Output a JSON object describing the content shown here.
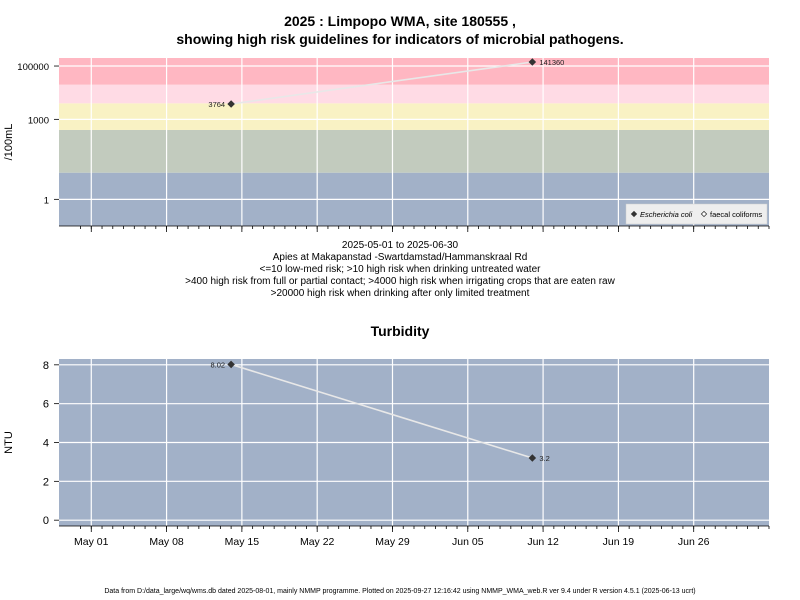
{
  "figure": {
    "title_line1": "2025 : Limpopo WMA, site 180555 ,",
    "title_line2": "showing high risk guidelines for indicators of microbial pathogens.",
    "date_range": "2025-05-01 to 2025-06-30",
    "site_name": "Apies at Makapanstad -Swartdamstad/Hammanskraal Rd",
    "guideline_1": "<=10 low-med risk; >10 high risk when drinking untreated water",
    "guideline_2": ">400 high risk from full or partial contact; >4000 high risk when irrigating crops that are eaten raw",
    "guideline_3": ">20000 high risk when drinking after only limited treatment",
    "footer": "Data from D:/data_large/wq/wms.db dated 2025-08-01, mainly NMMP programme. Plotted on 2025-09-27 12:16:42 using NMMP_WMA_web.R ver 9.4 under R version 4.5.1 (2025-06-13 ucrt)"
  },
  "chart_data": [
    {
      "type": "line",
      "title": "",
      "xlabel": "",
      "ylabel": "/100mL",
      "y_scale": "log",
      "ylim": [
        0.1,
        200000
      ],
      "x_ticks": [
        "May 01",
        "May 08",
        "May 15",
        "May 22",
        "May 29",
        "Jun 05",
        "Jun 12",
        "Jun 19",
        "Jun 26"
      ],
      "x_tick_dates": [
        "2025-05-01",
        "2025-05-08",
        "2025-05-15",
        "2025-05-22",
        "2025-05-29",
        "2025-06-05",
        "2025-06-12",
        "2025-06-19",
        "2025-06-26"
      ],
      "xlim": [
        "2025-04-28",
        "2025-07-03"
      ],
      "y_ticks": [
        1,
        1000,
        100000
      ],
      "y_tick_labels": [
        "1",
        "1000",
        "100000"
      ],
      "grid": true,
      "risk_bands": [
        {
          "from": 0.1,
          "to": 10,
          "color": "#a2b1c8"
        },
        {
          "from": 10,
          "to": 400,
          "color": "#c2cbbe"
        },
        {
          "from": 400,
          "to": 4000,
          "color": "#f9f2c4"
        },
        {
          "from": 4000,
          "to": 20000,
          "color": "#ffdbe5"
        },
        {
          "from": 20000,
          "to": 200000,
          "color": "#ffb7c2"
        }
      ],
      "series": [
        {
          "name": "Escherichia coli",
          "x": [
            "2025-05-14",
            "2025-06-11"
          ],
          "y": [
            3764,
            141360
          ],
          "labels": [
            "3764",
            "141360"
          ],
          "marker": "diamond-filled",
          "color": "#333333"
        }
      ],
      "legend": {
        "position": "bottom-right",
        "entries": [
          {
            "label": "Escherichia coli",
            "marker": "diamond-filled",
            "italic": true
          },
          {
            "label": "faecal coliforms",
            "marker": "diamond-open",
            "italic": false
          }
        ]
      }
    },
    {
      "type": "line",
      "title": "Turbidity",
      "xlabel": "",
      "ylabel": "NTU",
      "ylim": [
        -0.3,
        8.3
      ],
      "x_ticks": [
        "May 01",
        "May 08",
        "May 15",
        "May 22",
        "May 29",
        "Jun 05",
        "Jun 12",
        "Jun 19",
        "Jun 26"
      ],
      "x_tick_dates": [
        "2025-05-01",
        "2025-05-08",
        "2025-05-15",
        "2025-05-22",
        "2025-05-29",
        "2025-06-05",
        "2025-06-12",
        "2025-06-19",
        "2025-06-26"
      ],
      "xlim": [
        "2025-04-28",
        "2025-07-03"
      ],
      "y_ticks": [
        0,
        2,
        4,
        6,
        8
      ],
      "y_tick_labels": [
        "0",
        "2",
        "4",
        "6",
        "8"
      ],
      "grid": true,
      "background_color": "#a2b1c8",
      "series": [
        {
          "name": "",
          "x": [
            "2025-05-14",
            "2025-06-11"
          ],
          "y": [
            8.02,
            3.2
          ],
          "labels": [
            "8.02",
            "3.2"
          ],
          "marker": "diamond-filled",
          "color": "#333333"
        }
      ]
    }
  ]
}
